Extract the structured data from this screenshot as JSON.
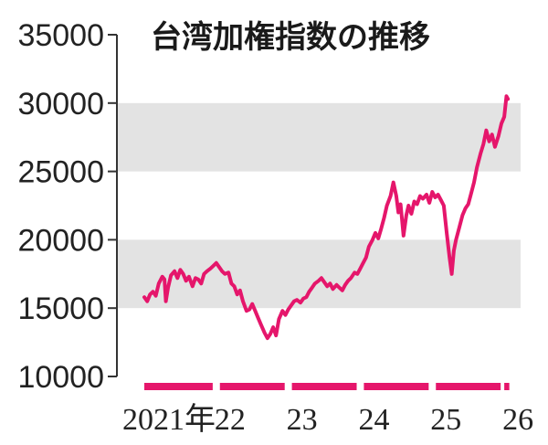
{
  "chart_data": {
    "type": "line",
    "title": "台湾加権指数の推移",
    "ylim": [
      10000,
      35000
    ],
    "yticks": [
      "35000",
      "30000",
      "25000",
      "20000",
      "15000",
      "10000"
    ],
    "grid_bands": [
      [
        15000,
        20000
      ],
      [
        25000,
        30000
      ]
    ],
    "xlim": [
      2021.0,
      2026.1
    ],
    "xticks": [
      {
        "label": "2021年",
        "at": 2021.0
      },
      {
        "label": "22",
        "at": 2022.0
      },
      {
        "label": "23",
        "at": 2023.0
      },
      {
        "label": "24",
        "at": 2024.0
      },
      {
        "label": "25",
        "at": 2025.0
      },
      {
        "label": "26",
        "at": 2026.0
      }
    ],
    "year_bars": [
      [
        2021.0,
        2021.95
      ],
      [
        2022.05,
        2022.95
      ],
      [
        2023.05,
        2023.95
      ],
      [
        2024.05,
        2024.95
      ],
      [
        2025.05,
        2025.95
      ],
      [
        2026.0,
        2026.07
      ]
    ],
    "series": [
      {
        "x": [
          2021.0,
          2021.04,
          2021.08,
          2021.12,
          2021.16,
          2021.2,
          2021.25,
          2021.28,
          2021.3,
          2021.33,
          2021.37,
          2021.42,
          2021.46,
          2021.5,
          2021.54,
          2021.58,
          2021.62,
          2021.67,
          2021.71,
          2021.75,
          2021.79,
          2021.83,
          2021.87,
          2021.92,
          2021.96,
          2022.0,
          2022.04,
          2022.08,
          2022.12,
          2022.17,
          2022.21,
          2022.25,
          2022.29,
          2022.33,
          2022.37,
          2022.42,
          2022.46,
          2022.5,
          2022.54,
          2022.58,
          2022.62,
          2022.67,
          2022.71,
          2022.75,
          2022.79,
          2022.83,
          2022.87,
          2022.92,
          2022.96,
          2023.0,
          2023.04,
          2023.08,
          2023.12,
          2023.17,
          2023.21,
          2023.25,
          2023.29,
          2023.33,
          2023.37,
          2023.42,
          2023.46,
          2023.5,
          2023.54,
          2023.58,
          2023.62,
          2023.67,
          2023.71,
          2023.75,
          2023.79,
          2023.83,
          2023.87,
          2023.92,
          2023.96,
          2024.0,
          2024.04,
          2024.08,
          2024.12,
          2024.17,
          2024.21,
          2024.25,
          2024.29,
          2024.33,
          2024.37,
          2024.42,
          2024.46,
          2024.5,
          2024.53,
          2024.56,
          2024.6,
          2024.64,
          2024.67,
          2024.71,
          2024.75,
          2024.79,
          2024.83,
          2024.87,
          2024.92,
          2024.96,
          2025.0,
          2025.04,
          2025.08,
          2025.12,
          2025.16,
          2025.2,
          2025.24,
          2025.27,
          2025.3,
          2025.33,
          2025.37,
          2025.42,
          2025.46,
          2025.5,
          2025.54,
          2025.58,
          2025.62,
          2025.67,
          2025.71,
          2025.75,
          2025.79,
          2025.83,
          2025.87,
          2025.92,
          2025.96,
          2026.0,
          2026.03,
          2026.05
        ],
        "y": [
          15800,
          15500,
          16000,
          16200,
          15900,
          16800,
          17300,
          17100,
          15500,
          16500,
          17400,
          17700,
          17200,
          17800,
          17500,
          17000,
          17300,
          16600,
          17200,
          17100,
          16800,
          17500,
          17700,
          17900,
          18100,
          18300,
          18000,
          17700,
          17500,
          17600,
          16800,
          16600,
          16000,
          16300,
          15500,
          14800,
          14900,
          15300,
          14800,
          14300,
          13800,
          13200,
          12800,
          13100,
          13600,
          13000,
          14200,
          14800,
          14500,
          14900,
          15200,
          15500,
          15600,
          15400,
          15700,
          15800,
          16200,
          16500,
          16800,
          17000,
          17200,
          16900,
          16600,
          16800,
          16400,
          16700,
          16500,
          16300,
          16700,
          17000,
          17200,
          17600,
          17500,
          17900,
          18300,
          18700,
          19500,
          20000,
          20500,
          20100,
          20800,
          21600,
          22500,
          23200,
          24200,
          23200,
          22000,
          22600,
          20300,
          21800,
          22500,
          21900,
          22800,
          22600,
          23200,
          23000,
          23300,
          22700,
          23500,
          23100,
          23300,
          22900,
          22500,
          20500,
          18700,
          17500,
          19200,
          20000,
          20800,
          21800,
          22300,
          22600,
          23400,
          24200,
          25300,
          26300,
          27000,
          28000,
          27200,
          27700,
          26800,
          27600,
          28500,
          29000,
          30500,
          30300
        ]
      }
    ]
  },
  "colors": {
    "line": "#e5166b",
    "band": "#e3e3e3",
    "axis": "#333333",
    "text": "#222222"
  }
}
